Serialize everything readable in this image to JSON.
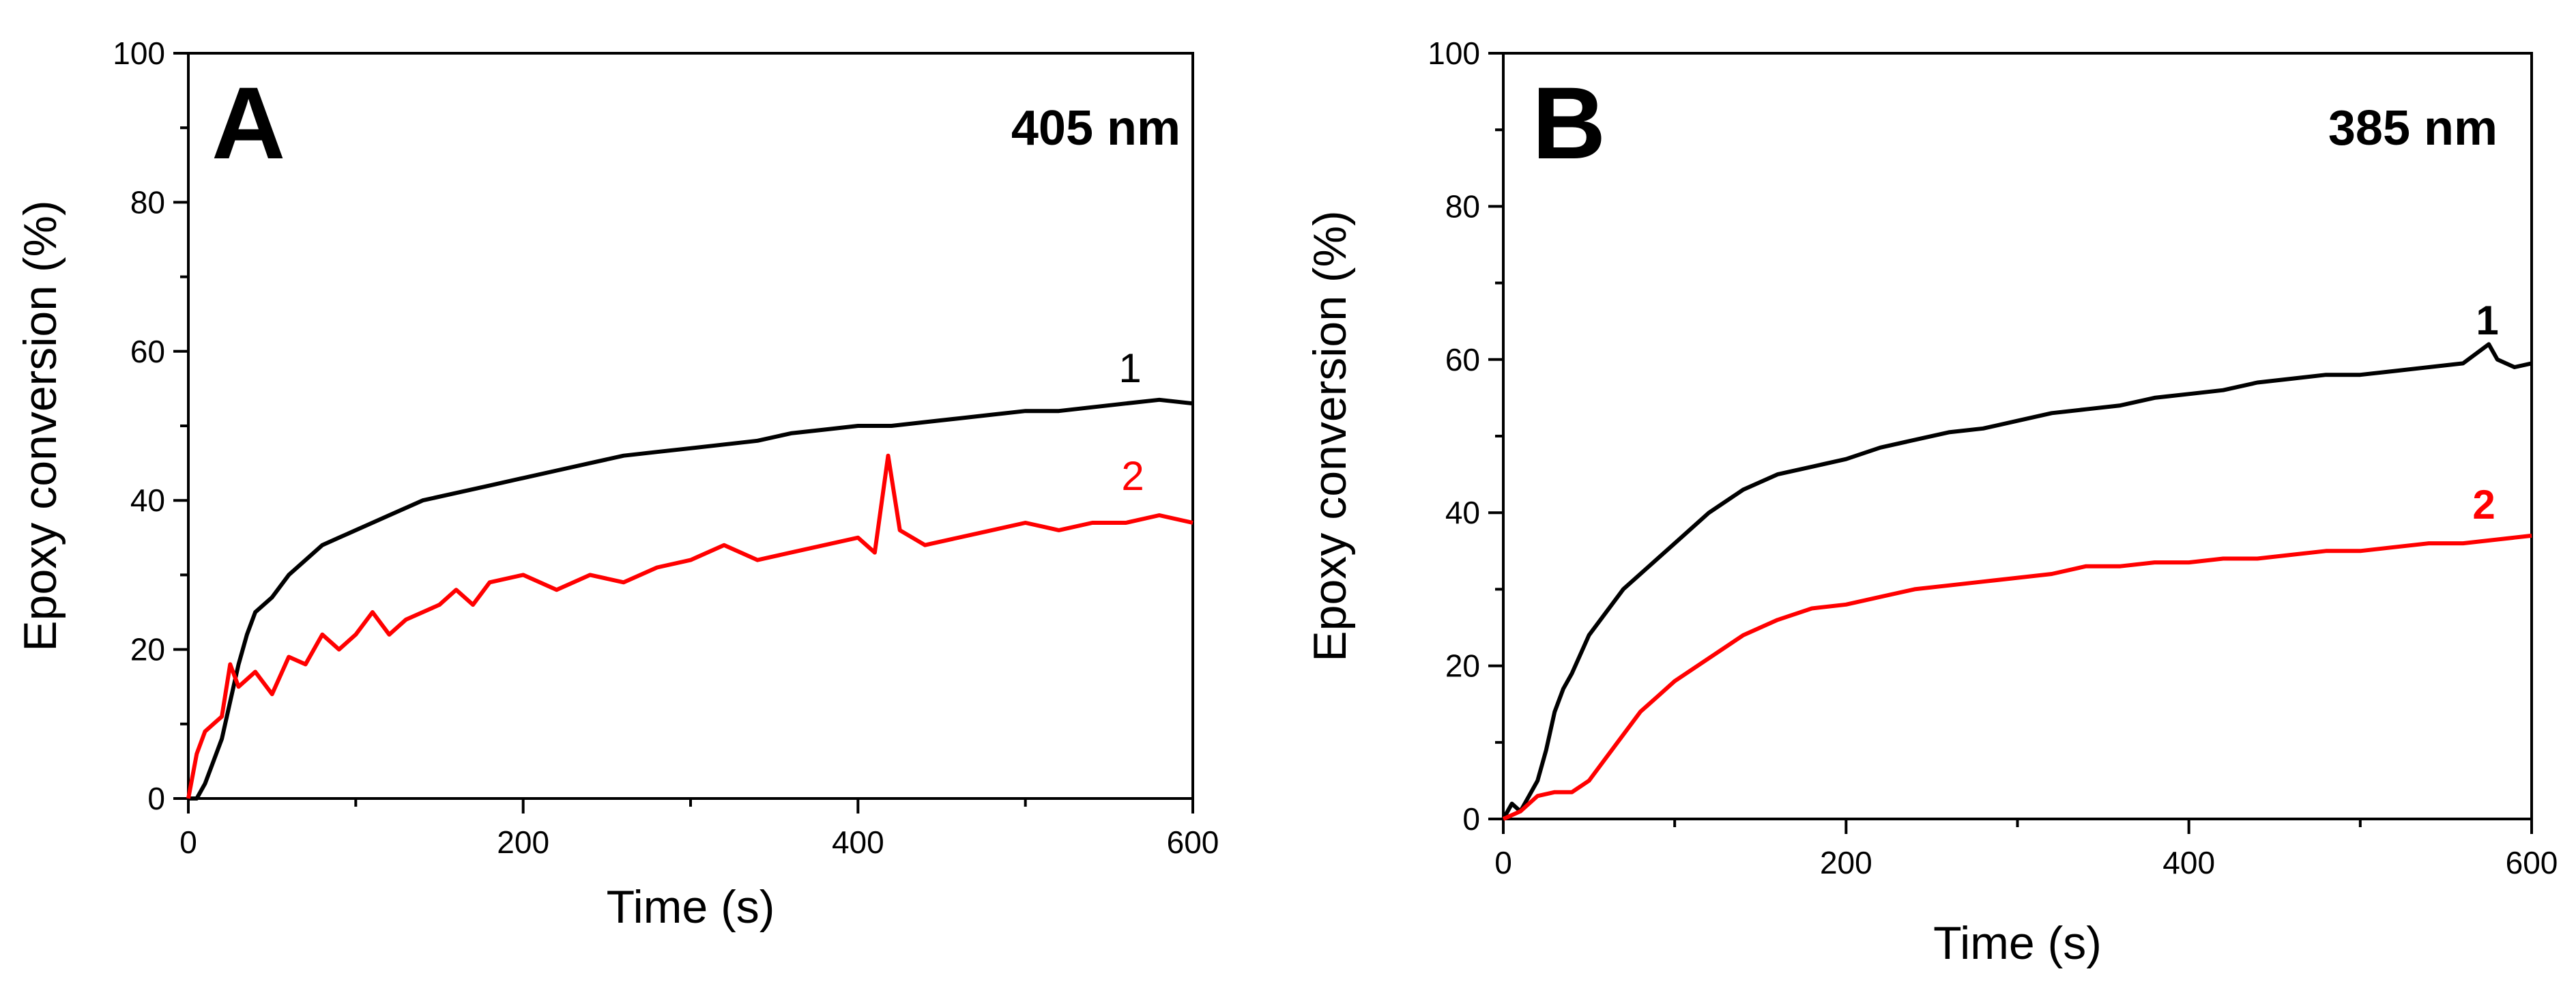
{
  "colors": {
    "series_1": "#000000",
    "series_2": "#ff0000",
    "axis": "#000000"
  },
  "chart_data": [
    {
      "type": "line",
      "panel_label": "A",
      "annotation": "405 nm",
      "xlabel": "Time (s)",
      "ylabel": "Epoxy conversion (%)",
      "xlim": [
        0,
        600
      ],
      "ylim": [
        0,
        100
      ],
      "xticks": [
        0,
        200,
        400,
        600
      ],
      "yticks": [
        0,
        20,
        40,
        60,
        80,
        100
      ],
      "series": [
        {
          "name": "1",
          "label_bold": false,
          "x": [
            0,
            5,
            10,
            15,
            20,
            25,
            30,
            35,
            40,
            50,
            60,
            70,
            80,
            90,
            100,
            120,
            140,
            160,
            180,
            200,
            220,
            240,
            260,
            280,
            300,
            320,
            340,
            360,
            380,
            400,
            420,
            440,
            460,
            480,
            500,
            520,
            540,
            560,
            580,
            600
          ],
          "y": [
            0,
            0,
            2,
            5,
            8,
            13,
            18,
            22,
            25,
            27,
            30,
            32,
            34,
            35,
            36,
            38,
            40,
            41,
            42,
            43,
            44,
            45,
            46,
            46.5,
            47,
            47.5,
            48,
            49,
            49.5,
            50,
            50,
            50.5,
            51,
            51.5,
            52,
            52,
            52.5,
            53,
            53.5,
            53
          ]
        },
        {
          "name": "2",
          "label_bold": false,
          "x": [
            0,
            5,
            10,
            15,
            20,
            25,
            30,
            40,
            50,
            60,
            70,
            80,
            90,
            100,
            110,
            120,
            130,
            140,
            150,
            160,
            170,
            180,
            200,
            220,
            240,
            260,
            280,
            300,
            320,
            340,
            360,
            380,
            400,
            410,
            418,
            425,
            440,
            460,
            480,
            500,
            520,
            540,
            560,
            580,
            600
          ],
          "y": [
            0,
            6,
            9,
            10,
            11,
            18,
            15,
            17,
            14,
            19,
            18,
            22,
            20,
            22,
            25,
            22,
            24,
            25,
            26,
            28,
            26,
            29,
            30,
            28,
            30,
            29,
            31,
            32,
            34,
            32,
            33,
            34,
            35,
            33,
            46,
            36,
            34,
            35,
            36,
            37,
            36,
            37,
            37,
            38,
            37
          ]
        }
      ]
    },
    {
      "type": "line",
      "panel_label": "B",
      "annotation": "385 nm",
      "xlabel": "Time (s)",
      "ylabel": "Epoxy conversion (%)",
      "xlim": [
        0,
        600
      ],
      "ylim": [
        0,
        100
      ],
      "xticks": [
        0,
        200,
        400,
        600
      ],
      "yticks": [
        0,
        20,
        40,
        60,
        80,
        100
      ],
      "series": [
        {
          "name": "1",
          "label_bold": true,
          "x": [
            0,
            5,
            10,
            15,
            20,
            25,
            30,
            35,
            40,
            50,
            60,
            70,
            80,
            90,
            100,
            120,
            140,
            160,
            180,
            200,
            220,
            240,
            260,
            280,
            300,
            320,
            340,
            360,
            380,
            400,
            420,
            440,
            460,
            480,
            500,
            520,
            540,
            560,
            575,
            580,
            590,
            600
          ],
          "y": [
            0,
            2,
            1,
            3,
            5,
            9,
            14,
            17,
            19,
            24,
            27,
            30,
            32,
            34,
            36,
            40,
            43,
            45,
            46,
            47,
            48.5,
            49.5,
            50.5,
            51,
            52,
            53,
            53.5,
            54,
            55,
            55.5,
            56,
            57,
            57.5,
            58,
            58,
            58.5,
            59,
            59.5,
            62,
            60,
            59,
            59.5
          ]
        },
        {
          "name": "2",
          "label_bold": true,
          "x": [
            0,
            10,
            20,
            30,
            40,
            50,
            60,
            70,
            80,
            90,
            100,
            120,
            140,
            160,
            180,
            200,
            220,
            240,
            260,
            280,
            300,
            320,
            340,
            360,
            380,
            400,
            420,
            440,
            460,
            480,
            500,
            520,
            540,
            560,
            580,
            600
          ],
          "y": [
            0,
            1,
            3,
            3.5,
            3.5,
            5,
            8,
            11,
            14,
            16,
            18,
            21,
            24,
            26,
            27.5,
            28,
            29,
            30,
            30.5,
            31,
            31.5,
            32,
            33,
            33,
            33.5,
            33.5,
            34,
            34,
            34.5,
            35,
            35,
            35.5,
            36,
            36,
            36.5,
            37
          ]
        }
      ]
    }
  ]
}
